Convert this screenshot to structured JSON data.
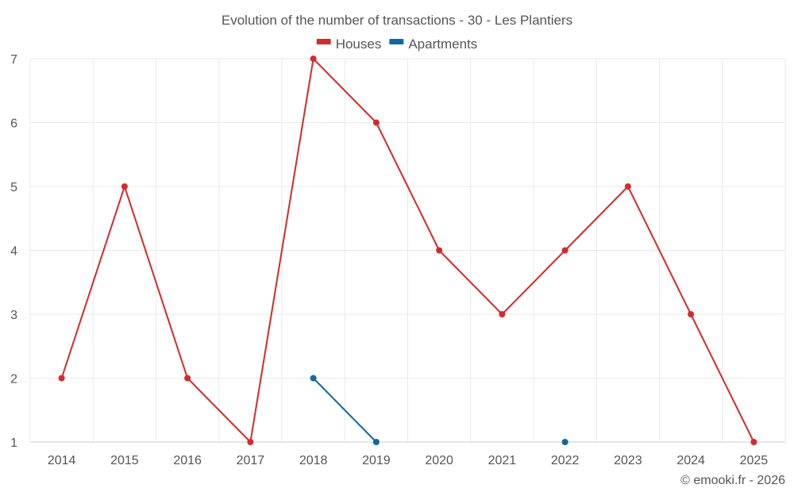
{
  "chart_data": {
    "type": "line",
    "title": "Evolution of the number of transactions - 30 - Les Plantiers",
    "categories": [
      "2014",
      "2015",
      "2016",
      "2017",
      "2018",
      "2019",
      "2020",
      "2021",
      "2022",
      "2023",
      "2024",
      "2025"
    ],
    "series": [
      {
        "name": "Houses",
        "color": "#d42a2a",
        "values": [
          2,
          5,
          2,
          1,
          7,
          6,
          4,
          3,
          4,
          5,
          3,
          1
        ]
      },
      {
        "name": "Apartments",
        "color": "#0f69a1",
        "values": [
          null,
          null,
          null,
          null,
          2,
          1,
          null,
          null,
          1,
          null,
          null,
          null
        ]
      }
    ],
    "yticks": [
      1,
      2,
      3,
      4,
      5,
      6,
      7
    ],
    "ylim": [
      1,
      7
    ],
    "grid": true,
    "legend_position": "top-center"
  },
  "credit": "© emooki.fr - 2026"
}
